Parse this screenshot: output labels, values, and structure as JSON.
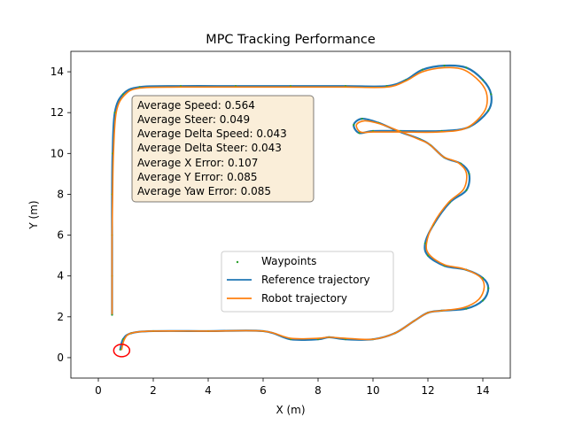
{
  "chart_data": {
    "type": "line",
    "title": "MPC Tracking Performance",
    "xlabel": "X (m)",
    "ylabel": "Y (m)",
    "xlim": [
      -1,
      15
    ],
    "ylim": [
      -1,
      15
    ],
    "xticks": [
      0,
      2,
      4,
      6,
      8,
      10,
      12,
      14
    ],
    "yticks": [
      0,
      2,
      4,
      6,
      8,
      10,
      12,
      14
    ],
    "grid": false,
    "legend_position": "center",
    "colors": {
      "waypoints": "#2ca02c",
      "reference": "#1f77b4",
      "robot": "#ff7f0e",
      "start_marker": "#ff0000",
      "stats_box_fill": "#f5deb3",
      "stats_box_edge": "#000000"
    },
    "series": [
      {
        "name": "Waypoints",
        "style": "dots",
        "x": [
          0.5,
          0.5,
          0.5,
          0.5,
          0.52,
          0.6,
          0.9,
          1.5,
          3,
          5,
          7,
          9,
          10.5,
          11.2,
          11.8,
          12.6,
          13.4,
          14,
          14.3,
          14.2,
          13.5,
          12.5,
          11,
          10,
          9.5,
          9.3,
          9.6,
          10.2,
          10.9,
          11.7,
          12.1,
          12.6,
          13.2,
          13.5,
          13.4,
          12.8,
          12.2,
          11.9,
          12,
          12.6,
          13.4,
          14,
          14.2,
          14,
          13.4,
          12.5,
          12,
          11.5,
          10.8,
          10,
          9,
          8.4,
          8,
          7,
          6,
          4,
          2,
          1.2,
          0.9,
          0.8
        ],
        "y": [
          2.1,
          4,
          6,
          8,
          10,
          12,
          12.9,
          13.25,
          13.3,
          13.3,
          13.3,
          13.3,
          13.3,
          13.6,
          14.1,
          14.3,
          14.2,
          13.6,
          12.9,
          12.1,
          11.3,
          11.1,
          11.1,
          11.1,
          11,
          11.4,
          11.7,
          11.5,
          11.1,
          10.7,
          10.4,
          9.8,
          9.5,
          9,
          8.2,
          7.6,
          6.5,
          5.6,
          5,
          4.5,
          4.3,
          3.9,
          3.4,
          2.8,
          2.4,
          2.3,
          2.2,
          1.8,
          1.2,
          0.9,
          0.9,
          1,
          0.9,
          0.9,
          1.3,
          1.3,
          1.3,
          1.2,
          0.9,
          0.4
        ]
      },
      {
        "name": "Reference trajectory",
        "style": "line",
        "x": [
          0.5,
          0.5,
          0.5,
          0.5,
          0.52,
          0.6,
          0.9,
          1.5,
          3,
          5,
          7,
          9,
          10.5,
          11.2,
          11.8,
          12.6,
          13.4,
          14,
          14.3,
          14.2,
          13.5,
          12.5,
          11,
          10,
          9.5,
          9.3,
          9.6,
          10.2,
          10.9,
          11.7,
          12.1,
          12.6,
          13.2,
          13.5,
          13.4,
          12.8,
          12.2,
          11.9,
          12,
          12.6,
          13.4,
          14,
          14.2,
          14,
          13.4,
          12.5,
          12,
          11.5,
          10.8,
          10,
          9,
          8.4,
          8,
          7,
          6,
          4,
          2,
          1.2,
          0.9,
          0.8
        ],
        "y": [
          2.1,
          4,
          6,
          8,
          10,
          12,
          12.9,
          13.25,
          13.3,
          13.3,
          13.3,
          13.3,
          13.3,
          13.6,
          14.1,
          14.3,
          14.2,
          13.6,
          12.9,
          12.1,
          11.3,
          11.1,
          11.1,
          11.1,
          11,
          11.4,
          11.7,
          11.5,
          11.1,
          10.7,
          10.4,
          9.8,
          9.5,
          9,
          8.2,
          7.6,
          6.5,
          5.6,
          5,
          4.5,
          4.3,
          3.9,
          3.4,
          2.8,
          2.4,
          2.3,
          2.2,
          1.8,
          1.2,
          0.9,
          0.9,
          1,
          0.9,
          0.9,
          1.3,
          1.3,
          1.3,
          1.2,
          0.9,
          0.4
        ]
      },
      {
        "name": "Robot trajectory",
        "style": "line",
        "x": [
          0.5,
          0.5,
          0.5,
          0.52,
          0.55,
          0.65,
          0.95,
          1.5,
          3,
          5,
          7,
          9,
          10.5,
          11.2,
          11.8,
          12.6,
          13.3,
          13.9,
          14.15,
          14.05,
          13.4,
          12.4,
          11,
          10,
          9.55,
          9.4,
          9.7,
          10.25,
          10.95,
          11.65,
          12.05,
          12.55,
          13.1,
          13.4,
          13.3,
          12.75,
          12.2,
          11.95,
          12.05,
          12.6,
          13.3,
          13.9,
          14.05,
          13.85,
          13.3,
          12.5,
          12,
          11.5,
          10.8,
          10,
          9,
          8.4,
          8,
          7,
          6,
          4,
          2,
          1.2,
          0.95,
          0.85
        ],
        "y": [
          2.15,
          4,
          6,
          8,
          10,
          12,
          12.85,
          13.2,
          13.25,
          13.25,
          13.25,
          13.25,
          13.25,
          13.55,
          14,
          14.2,
          14.1,
          13.5,
          12.85,
          12.05,
          11.25,
          11.05,
          11.05,
          11.05,
          11.05,
          11.4,
          11.6,
          11.45,
          11.1,
          10.7,
          10.45,
          9.85,
          9.55,
          9.05,
          8.25,
          7.6,
          6.55,
          5.6,
          5.05,
          4.55,
          4.35,
          3.95,
          3.45,
          2.85,
          2.45,
          2.3,
          2.2,
          1.8,
          1.2,
          0.9,
          0.95,
          1,
          0.95,
          0.95,
          1.3,
          1.3,
          1.3,
          1.2,
          0.9,
          0.4
        ]
      }
    ],
    "start_marker": {
      "x": 0.85,
      "y": 0.35
    },
    "stats_lines": [
      "Average Speed: 0.564",
      "Average Steer: 0.049",
      "Average Delta Speed: 0.043",
      "Average Delta Steer: 0.043",
      "Average X Error: 0.107",
      "Average Y Error: 0.085",
      "Average Yaw Error: 0.085"
    ],
    "legend": [
      "Waypoints",
      "Reference trajectory",
      "Robot trajectory"
    ]
  }
}
